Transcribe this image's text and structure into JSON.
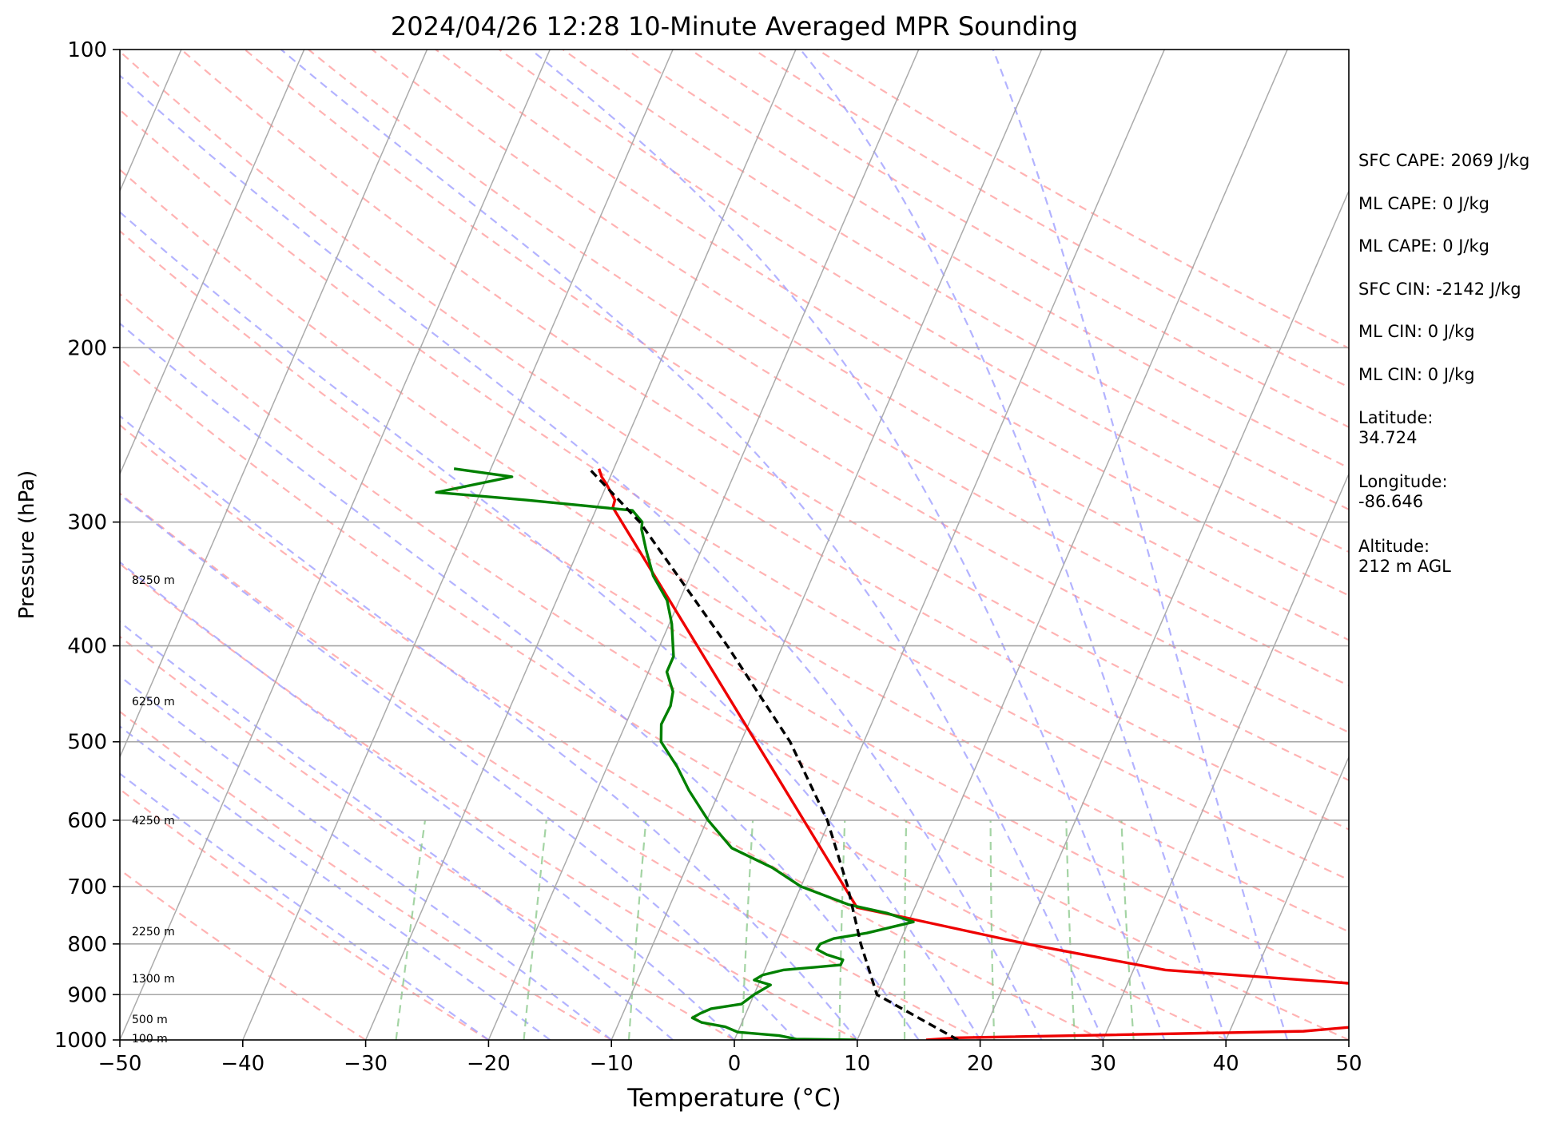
{
  "chart_data": {
    "type": "skew-t",
    "title": "2024/04/26 12:28 10-Minute Averaged MPR Sounding",
    "xlabel": "Temperature (°C)",
    "ylabel": "Pressure (hPa)",
    "xlim": [
      -50,
      50
    ],
    "ylim_pressure": [
      1000,
      100
    ],
    "y_scale": "log",
    "x_ticks": [
      "−50",
      "−40",
      "−30",
      "−20",
      "−10",
      "0",
      "10",
      "20",
      "30",
      "40",
      "50"
    ],
    "y_ticks": [
      "100",
      "200",
      "300",
      "400",
      "500",
      "600",
      "700",
      "800",
      "900",
      "1000"
    ],
    "grid": "horizontal pressure lines, skewed isotherms, dry adiabats (red dashed), moist adiabats (blue dashed), mixing ratio lines (green dashed)",
    "height_labels": [
      {
        "text": "8250 m",
        "p": 343
      },
      {
        "text": "6250 m",
        "p": 455
      },
      {
        "text": "4250 m",
        "p": 600
      },
      {
        "text": "2250 m",
        "p": 777
      },
      {
        "text": "1300 m",
        "p": 867
      },
      {
        "text": "500 m",
        "p": 953
      },
      {
        "text": "100 m",
        "p": 996
      }
    ],
    "series": [
      {
        "color": "#ee0000",
        "points": [
          [
            1000,
            15.6
          ],
          [
            995,
            18.0
          ],
          [
            980,
            46
          ],
          [
            970,
            50
          ],
          [
            880,
            50
          ],
          [
            850,
            32.6
          ],
          [
            800,
            20.4
          ],
          [
            750,
            9.0
          ],
          [
            735,
            5.3
          ],
          [
            290,
            -28.7
          ],
          [
            285,
            -28.8
          ],
          [
            280,
            -29.4
          ],
          [
            275,
            -30.0
          ],
          [
            270,
            -30.7
          ],
          [
            265,
            -31.2
          ]
        ]
      },
      {
        "color": "#008000",
        "points": [
          [
            1000,
            9.9
          ],
          [
            998,
            5.0
          ],
          [
            990,
            3.5
          ],
          [
            982,
            0.0
          ],
          [
            970,
            -1.2
          ],
          [
            960,
            -3.3
          ],
          [
            950,
            -4.2
          ],
          [
            940,
            -3.7
          ],
          [
            930,
            -3.0
          ],
          [
            920,
            -0.7
          ],
          [
            900,
            0.0
          ],
          [
            880,
            1.0
          ],
          [
            870,
            -0.5
          ],
          [
            860,
            0.0
          ],
          [
            850,
            1.5
          ],
          [
            840,
            6.0
          ],
          [
            830,
            6.0
          ],
          [
            820,
            4.5
          ],
          [
            810,
            3.5
          ],
          [
            800,
            3.6
          ],
          [
            790,
            4.5
          ],
          [
            780,
            7.0
          ],
          [
            760,
            10.4
          ],
          [
            745,
            8.0
          ],
          [
            730,
            4.5
          ],
          [
            700,
            0.0
          ],
          [
            670,
            -3.0
          ],
          [
            640,
            -7.0
          ],
          [
            600,
            -9.9
          ],
          [
            560,
            -12.5
          ],
          [
            530,
            -14.3
          ],
          [
            500,
            -16.5
          ],
          [
            480,
            -17.1
          ],
          [
            460,
            -17.0
          ],
          [
            445,
            -17.3
          ],
          [
            425,
            -18.5
          ],
          [
            410,
            -18.5
          ],
          [
            380,
            -19.8
          ],
          [
            360,
            -21.0
          ],
          [
            340,
            -23.0
          ],
          [
            320,
            -24.5
          ],
          [
            305,
            -25.6
          ],
          [
            300,
            -25.8
          ],
          [
            292,
            -27.0
          ],
          [
            285,
            -36.0
          ],
          [
            280,
            -43.6
          ],
          [
            270,
            -38.0
          ],
          [
            265,
            -43.0
          ]
        ]
      },
      {
        "color": "#000000",
        "dash": true,
        "points": [
          [
            1000,
            18.2
          ],
          [
            900,
            10.0
          ],
          [
            800,
            6.9
          ],
          [
            700,
            3.8
          ],
          [
            600,
            -0.2
          ],
          [
            500,
            -6.0
          ],
          [
            400,
            -14.5
          ],
          [
            300,
            -26.0
          ],
          [
            265,
            -32.0
          ]
        ]
      }
    ]
  },
  "info_panel": [
    "SFC CAPE: 2069 J/kg",
    "ML CAPE: 0 J/kg",
    "ML CAPE: 0 J/kg",
    "SFC CIN: -2142 J/kg",
    "ML CIN: 0 J/kg",
    "ML CIN: 0 J/kg",
    "Latitude:\n34.724",
    "Longitude:\n-86.646",
    "Altitude:\n212 m AGL"
  ],
  "colors": {
    "temperature": "#ee0000",
    "dewpoint": "#008000",
    "parcel": "#000000",
    "dry_adiabats": "#ff9a9a",
    "moist_adiabats": "#9a9aff",
    "mixing_ratio": "#86c686",
    "isotherms": "#a6a6a6"
  }
}
